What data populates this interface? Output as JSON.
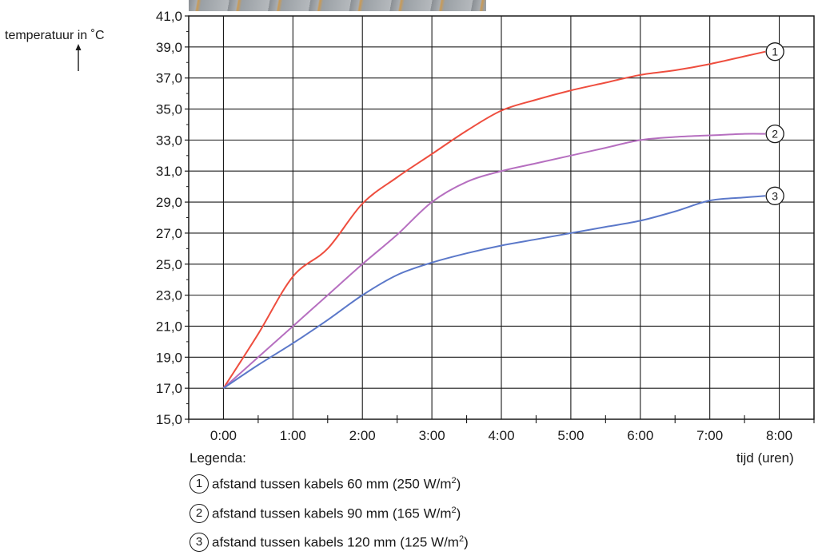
{
  "chart_data": {
    "type": "line",
    "ylabel": "temperatuur in ˚C",
    "xlabel": "tijd (uren)",
    "x_ticks": [
      "0:00",
      "1:00",
      "2:00",
      "3:00",
      "4:00",
      "5:00",
      "6:00",
      "7:00",
      "8:00"
    ],
    "y_ticks": [
      "15,0",
      "17,0",
      "19,0",
      "21,0",
      "23,0",
      "25,0",
      "27,0",
      "29,0",
      "31,0",
      "33,0",
      "35,0",
      "37,0",
      "39,0",
      "41,0"
    ],
    "ylim": [
      15,
      41
    ],
    "xlim_hours": [
      -0.5,
      8.5
    ],
    "grid": true,
    "legend_title": "Legenda:",
    "legend_placement": "bottom",
    "series": [
      {
        "marker": "1",
        "legend_label": "afstand tussen kabels 60 mm (250 W/m",
        "legend_sup": "2",
        "legend_suffix": ")",
        "color": "#ee4e3f",
        "x": [
          0,
          0.5,
          1,
          1.5,
          2,
          2.5,
          3,
          3.5,
          4,
          4.5,
          5,
          5.5,
          6,
          6.5,
          7,
          7.5,
          7.8
        ],
        "y": [
          17.0,
          20.5,
          24.2,
          26.0,
          28.9,
          30.6,
          32.1,
          33.6,
          34.9,
          35.6,
          36.2,
          36.7,
          37.2,
          37.5,
          37.9,
          38.4,
          38.7
        ]
      },
      {
        "marker": "2",
        "legend_label": "afstand tussen kabels 90 mm (165 W/m",
        "legend_sup": "2",
        "legend_suffix": ")",
        "color": "#b66fc0",
        "x": [
          0,
          0.5,
          1,
          1.5,
          2,
          2.5,
          3,
          3.5,
          4,
          4.5,
          5,
          5.5,
          6,
          6.5,
          7,
          7.5,
          7.8
        ],
        "y": [
          17.0,
          19.0,
          21.0,
          23.0,
          25.0,
          26.9,
          29.0,
          30.3,
          31.0,
          31.5,
          32.0,
          32.5,
          33.0,
          33.2,
          33.3,
          33.4,
          33.4
        ]
      },
      {
        "marker": "3",
        "legend_label": "afstand tussen kabels 120 mm (125 W/m",
        "legend_sup": "2",
        "legend_suffix": ")",
        "color": "#5b78c9",
        "x": [
          0,
          0.5,
          1,
          1.5,
          2,
          2.5,
          3,
          3.5,
          4,
          4.5,
          5,
          5.5,
          6,
          6.5,
          7,
          7.5,
          7.8
        ],
        "y": [
          17.0,
          18.5,
          19.9,
          21.4,
          23.0,
          24.3,
          25.1,
          25.7,
          26.2,
          26.6,
          27.0,
          27.4,
          27.8,
          28.4,
          29.1,
          29.3,
          29.4
        ]
      }
    ]
  }
}
